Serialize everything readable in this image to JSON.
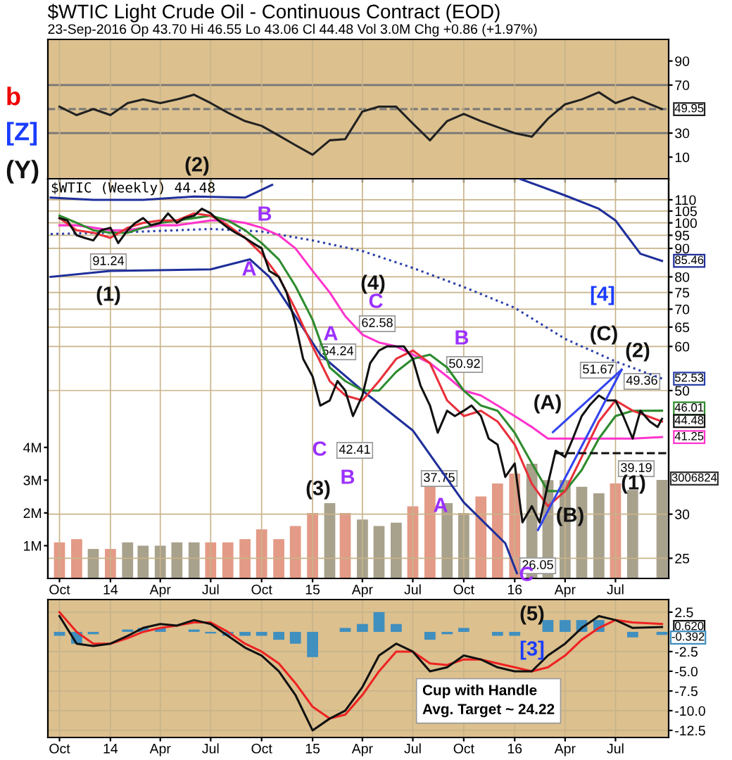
{
  "chart_data": [
    {
      "type": "line",
      "title": "$WTIC Light Crude Oil - Continuous Contract (EOD)",
      "subtitle": "23-Sep-2016 Op 43.70 Hi 46.55 Lo 43.06 Cl 44.48 Vol 3.0M Chg +0.86 (+1.97%)",
      "x": [
        "2013-10",
        "2013-11",
        "2013-12",
        "2014-01",
        "2014-02",
        "2014-03",
        "2014-04",
        "2014-05",
        "2014-06",
        "2014-07",
        "2014-08",
        "2014-09",
        "2014-10",
        "2014-11",
        "2014-12",
        "2015-01",
        "2015-02",
        "2015-03",
        "2015-04",
        "2015-05",
        "2015-06",
        "2015-07",
        "2015-08",
        "2015-09",
        "2015-10",
        "2015-11",
        "2015-12",
        "2016-01",
        "2016-02",
        "2016-03",
        "2016-04",
        "2016-05",
        "2016-06",
        "2016-07",
        "2016-08",
        "2016-09-23"
      ],
      "series": [
        {
          "color": "#222222",
          "values": [
            52,
            45,
            50,
            45,
            55,
            58,
            55,
            58,
            62,
            55,
            47,
            40,
            36,
            28,
            20,
            12,
            24,
            25,
            48,
            52,
            52,
            38,
            24,
            40,
            46,
            40,
            35,
            30,
            27,
            42,
            54,
            58,
            64,
            55,
            60,
            49.95
          ],
          "value_labels": [
            null,
            null,
            null,
            null,
            null,
            null,
            null,
            null,
            null,
            null,
            null,
            null,
            null,
            null,
            null,
            null,
            null,
            null,
            null,
            null,
            null,
            null,
            null,
            null,
            null,
            null,
            null,
            null,
            null,
            null,
            null,
            null,
            null,
            null,
            null,
            "49.95"
          ]
        }
      ],
      "xlim": [
        "2013-09-10",
        "2016-10-05"
      ],
      "xticks": [
        {
          "value": "2013-10-01",
          "label": null
        },
        {
          "value": "2014-01-01",
          "label": null
        },
        {
          "value": "2014-04-01",
          "label": null
        },
        {
          "value": "2014-07-01",
          "label": null
        },
        {
          "value": "2014-10-01",
          "label": null
        },
        {
          "value": "2015-01-01",
          "label": null
        },
        {
          "value": "2015-04-01",
          "label": null
        },
        {
          "value": "2015-07-01",
          "label": null
        },
        {
          "value": "2015-10-01",
          "label": null
        },
        {
          "value": "2016-01-01",
          "label": null
        },
        {
          "value": "2016-04-01",
          "label": null
        },
        {
          "value": "2016-07-01",
          "label": null
        }
      ],
      "ylim": [
        -8,
        108
      ],
      "yticks": [
        10,
        30,
        70,
        90
      ],
      "ref_lines": [
        {
          "axis": "y",
          "value": 30,
          "color": "#777777",
          "line_style": "solid"
        },
        {
          "axis": "y",
          "value": 50,
          "color": "#777777",
          "line_style": "dashed"
        },
        {
          "axis": "y",
          "value": 70,
          "color": "#777777",
          "line_style": "solid"
        }
      ],
      "annotations": [
        "b",
        "[Z]",
        "(Y)"
      ],
      "grid": "x",
      "tick_labels": "y"
    },
    {
      "type": "line",
      "log": true,
      "x": [
        "2013-10",
        "2013-11",
        "2013-12",
        "2014-01",
        "2014-02",
        "2014-03",
        "2014-04",
        "2014-05",
        "2014-06",
        "2014-07",
        "2014-08",
        "2014-09",
        "2014-10",
        "2014-11",
        "2014-12",
        "2015-01",
        "2015-02",
        "2015-03",
        "2015-04",
        "2015-05",
        "2015-06",
        "2015-07",
        "2015-08",
        "2015-09",
        "2015-10",
        "2015-11",
        "2015-12",
        "2016-01",
        "2016-02",
        "2016-03",
        "2016-04",
        "2016-05",
        "2016-06",
        "2016-07",
        "2016-08",
        "2016-09-23"
      ],
      "series": [
        {
          "type": "bar",
          "axis": "y2",
          "values": [
            1100000,
            1200000,
            900000,
            900000,
            1100000,
            1000000,
            1000000,
            1100000,
            1100000,
            1100000,
            1100000,
            1200000,
            1500000,
            1200000,
            1600000,
            2000000,
            2300000,
            2000000,
            1800000,
            1600000,
            1700000,
            2200000,
            2800000,
            2300000,
            2000000,
            2500000,
            2900000,
            3200000,
            3500000,
            3000000,
            3000000,
            2800000,
            2600000,
            2900000,
            2700000,
            3006824
          ],
          "colors": [
            "#e39a86",
            "#e39a86",
            "#a8a18c",
            "#e39a86",
            "#a8a18c",
            "#a8a18c",
            "#a8a18c",
            "#a8a18c",
            "#a8a18c",
            "#e39a86",
            "#e39a86",
            "#e39a86",
            "#e39a86",
            "#e39a86",
            "#e39a86",
            "#e39a86",
            "#a8a18c",
            "#e39a86",
            "#a8a18c",
            "#a8a18c",
            "#a8a18c",
            "#e39a86",
            "#e39a86",
            "#a8a18c",
            "#a8a18c",
            "#e39a86",
            "#e39a86",
            "#e39a86",
            "#a8a18c",
            "#a8a18c",
            "#a8a18c",
            "#a8a18c",
            "#a8a18c",
            "#e39a86",
            "#a8a18c",
            "#a8a18c"
          ]
        },
        {
          "color": "#1f2f9a",
          "x": [
            "2013-09-15",
            "2013-12-01",
            "2014-03-01",
            "2014-06-01",
            "2014-09-01",
            "2014-10-20",
            "2015-06-01",
            "2016-01-10",
            "2016-04-01",
            "2016-06-01",
            "2016-07-01",
            "2016-08-15",
            "2016-09-23"
          ],
          "values": [
            111,
            110,
            110,
            111.5,
            111,
            117,
            null,
            120,
            112,
            106,
            101,
            88,
            85.46
          ],
          "value_labels": [
            null,
            null,
            null,
            null,
            null,
            null,
            null,
            null,
            null,
            null,
            null,
            null,
            "85.46"
          ]
        },
        {
          "color": "#1f2f9a",
          "x": [
            "2013-09-15",
            "2014-01-01",
            "2014-07-01",
            "2014-09-10",
            "2014-10-15",
            "2014-12-01",
            "2015-01-15",
            "2015-04-01",
            "2015-07-01",
            "2015-10-01",
            "2015-12-15",
            "2016-01-05"
          ],
          "values": [
            80,
            82,
            82.5,
            86,
            80,
            68,
            58,
            50,
            42.4,
            31.5,
            26.6,
            23.5
          ]
        },
        {
          "color": "#2a3fa8",
          "line_style": "dotted",
          "x": [
            "2013-09-15",
            "2014-01-01",
            "2014-07-01",
            "2014-10-01",
            "2015-01-01",
            "2015-04-01",
            "2015-07-01",
            "2015-10-01",
            "2016-01-01",
            "2016-04-01",
            "2016-07-01",
            "2016-09-23"
          ],
          "values": [
            95.5,
            96,
            97.5,
            96.5,
            93,
            89,
            83,
            76.7,
            70.4,
            61.9,
            56.4,
            52.53
          ],
          "value_labels": [
            null,
            null,
            null,
            null,
            null,
            null,
            null,
            null,
            null,
            null,
            null,
            "52.53"
          ]
        },
        {
          "color": "#ff33cc",
          "values": [
            99,
            99,
            98,
            97,
            97,
            98,
            99,
            99,
            100,
            101,
            101,
            100,
            98,
            95,
            90,
            82,
            75,
            68,
            63,
            61,
            60,
            58,
            56,
            53,
            50,
            49,
            47,
            45,
            43,
            41,
            41,
            41,
            41,
            41,
            41,
            41.25
          ],
          "value_labels": [
            null,
            null,
            null,
            null,
            null,
            null,
            null,
            null,
            null,
            null,
            null,
            null,
            null,
            null,
            null,
            null,
            null,
            null,
            null,
            null,
            null,
            null,
            null,
            null,
            null,
            null,
            null,
            null,
            null,
            null,
            null,
            null,
            null,
            null,
            null,
            "41.25"
          ]
        },
        {
          "color": "#2e8b2e",
          "values": [
            103,
            100,
            97,
            96,
            96,
            98,
            100,
            101,
            102,
            103,
            101,
            97,
            92,
            86,
            77,
            67,
            55,
            52,
            50,
            50,
            54,
            57,
            58,
            55,
            50,
            47,
            46,
            42,
            37,
            33,
            33,
            36,
            41,
            45,
            46,
            46.01
          ],
          "value_labels": [
            null,
            null,
            null,
            null,
            null,
            null,
            null,
            null,
            null,
            null,
            null,
            null,
            null,
            null,
            null,
            null,
            null,
            null,
            null,
            null,
            null,
            null,
            null,
            null,
            null,
            null,
            null,
            null,
            null,
            null,
            null,
            null,
            null,
            null,
            null,
            "46.01"
          ]
        },
        {
          "color": "#e8303a",
          "values": [
            102,
            97,
            96,
            94,
            98,
            100,
            101,
            101,
            104,
            103,
            99,
            94,
            88,
            80,
            70,
            60,
            52,
            49,
            48,
            52,
            57,
            59,
            56,
            48,
            45,
            46,
            44,
            40,
            34,
            31,
            33,
            38,
            44,
            48,
            46,
            44
          ]
        },
        {
          "color": "#111111",
          "x": [
            "2013-10-01",
            "2013-10-15",
            "2013-11-01",
            "2013-11-15",
            "2013-12-01",
            "2013-12-15",
            "2014-01-01",
            "2014-01-15",
            "2014-02-01",
            "2014-02-15",
            "2014-03-01",
            "2014-03-15",
            "2014-04-01",
            "2014-04-15",
            "2014-05-01",
            "2014-05-15",
            "2014-06-01",
            "2014-06-15",
            "2014-07-01",
            "2014-07-15",
            "2014-08-01",
            "2014-08-15",
            "2014-09-01",
            "2014-09-15",
            "2014-10-01",
            "2014-10-15",
            "2014-11-01",
            "2014-11-15",
            "2014-12-01",
            "2014-12-15",
            "2015-01-01",
            "2015-01-15",
            "2015-02-01",
            "2015-02-15",
            "2015-03-01",
            "2015-03-15",
            "2015-04-01",
            "2015-04-15",
            "2015-05-01",
            "2015-05-15",
            "2015-06-01",
            "2015-06-15",
            "2015-07-01",
            "2015-07-15",
            "2015-08-01",
            "2015-08-15",
            "2015-09-01",
            "2015-09-15",
            "2015-10-01",
            "2015-10-15",
            "2015-11-01",
            "2015-11-15",
            "2015-12-01",
            "2015-12-15",
            "2016-01-01",
            "2016-01-15",
            "2016-02-01",
            "2016-02-15",
            "2016-03-01",
            "2016-03-15",
            "2016-04-01",
            "2016-04-15",
            "2016-05-01",
            "2016-05-15",
            "2016-06-01",
            "2016-06-15",
            "2016-07-01",
            "2016-07-15",
            "2016-08-01",
            "2016-08-15",
            "2016-09-01",
            "2016-09-15",
            "2016-09-23"
          ],
          "values": [
            102,
            101,
            95,
            94,
            93,
            97,
            98,
            92,
            97,
            100,
            102,
            99,
            100,
            104,
            100,
            102,
            103,
            106,
            104,
            101,
            98,
            96,
            94,
            92,
            90,
            82,
            80,
            75,
            66,
            57,
            53,
            47,
            48,
            52,
            50,
            45,
            49,
            56,
            59,
            60,
            60,
            60,
            57,
            51,
            47,
            42,
            46,
            45,
            46,
            47,
            45,
            41,
            40,
            35,
            37,
            29,
            31,
            29,
            34,
            39,
            38,
            41,
            45,
            47,
            49,
            48,
            48,
            45,
            41,
            46,
            44,
            43,
            44.48
          ],
          "value_labels": [
            null,
            null,
            null,
            null,
            null,
            null,
            null,
            null,
            null,
            null,
            null,
            null,
            null,
            null,
            null,
            null,
            null,
            null,
            null,
            null,
            null,
            null,
            null,
            null,
            null,
            null,
            null,
            null,
            null,
            null,
            null,
            null,
            null,
            null,
            null,
            null,
            null,
            null,
            null,
            null,
            null,
            null,
            null,
            null,
            null,
            null,
            null,
            null,
            null,
            null,
            null,
            null,
            null,
            null,
            null,
            null,
            null,
            null,
            null,
            null,
            null,
            null,
            null,
            null,
            null,
            null,
            null,
            null,
            null,
            null,
            null,
            null,
            "44.48"
          ]
        },
        {
          "color": "#3344ee",
          "x": [
            "2016-02-12",
            "2016-07-12"
          ],
          "values": [
            28.1,
            54.5
          ]
        },
        {
          "color": "#3344ee",
          "x": [
            "2016-03-10",
            "2016-07-12"
          ],
          "values": [
            42.1,
            54.5
          ]
        },
        {
          "color": "#111111",
          "line_style": "dashed",
          "x": [
            "2016-03-15",
            "2016-10-01"
          ],
          "values": [
            38.6,
            38.6
          ]
        }
      ],
      "xlim": [
        "2013-09-10",
        "2016-10-05"
      ],
      "xticks": [
        {
          "value": "2013-10-01",
          "label": "Oct"
        },
        {
          "value": "2014-01-01",
          "label": "14"
        },
        {
          "value": "2014-04-01",
          "label": "Apr"
        },
        {
          "value": "2014-07-01",
          "label": "Jul"
        },
        {
          "value": "2014-10-01",
          "label": "Oct"
        },
        {
          "value": "2015-01-01",
          "label": "15"
        },
        {
          "value": "2015-04-01",
          "label": "Apr"
        },
        {
          "value": "2015-07-01",
          "label": "Jul"
        },
        {
          "value": "2015-10-01",
          "label": "Oct"
        },
        {
          "value": "2016-01-01",
          "label": "16"
        },
        {
          "value": "2016-04-01",
          "label": "Apr"
        },
        {
          "value": "2016-07-01",
          "label": "Jul"
        }
      ],
      "ylim": [
        23,
        120
      ],
      "yticks": [
        25,
        30,
        50,
        60,
        65,
        70,
        75,
        80,
        90,
        95,
        100,
        105,
        110
      ],
      "y2lim": [
        0,
        12200000
      ],
      "y2ticks": [
        {
          "value": 1000000,
          "label": "1M"
        },
        {
          "value": 2000000,
          "label": "2M"
        },
        {
          "value": 3000000,
          "label": "3M"
        },
        {
          "value": 4000000,
          "label": "4M"
        }
      ],
      "annotations": [
        "$WTIC (Weekly) 44.48",
        "(2)",
        "B",
        "91.24",
        "(1)",
        "A",
        "A",
        "54.24",
        "C",
        "42.41",
        "B",
        "(3)",
        "(4)",
        "C",
        "62.58",
        "B",
        "50.92",
        "37.75",
        "A",
        "(A)",
        "(B)",
        "26.05",
        "C",
        "[4]",
        "(C)",
        "(2)",
        "51.67",
        "49.36",
        "39.19",
        "(1)",
        "3006824"
      ],
      "grid": true
    },
    {
      "type": "line",
      "x": [
        "2013-10",
        "2013-11",
        "2013-12",
        "2014-01",
        "2014-02",
        "2014-03",
        "2014-04",
        "2014-05",
        "2014-06",
        "2014-07",
        "2014-08",
        "2014-09",
        "2014-10",
        "2014-11",
        "2014-12",
        "2015-01",
        "2015-02",
        "2015-03",
        "2015-04",
        "2015-05",
        "2015-06",
        "2015-07",
        "2015-08",
        "2015-09",
        "2015-10",
        "2015-11",
        "2015-12",
        "2016-01",
        "2016-02",
        "2016-03",
        "2016-04",
        "2016-05",
        "2016-06",
        "2016-07",
        "2016-08",
        "2016-09-23"
      ],
      "series": [
        {
          "type": "bar",
          "color": "#3f8fbf",
          "values": [
            -0.5,
            -1.5,
            -0.3,
            0.0,
            0.3,
            0.5,
            0.5,
            0.0,
            0.3,
            -0.2,
            -0.5,
            -0.5,
            -0.5,
            -1.0,
            -1.5,
            -3.2,
            0.0,
            0.5,
            1.0,
            2.5,
            1.0,
            0.0,
            -1.0,
            -0.3,
            0.5,
            0.0,
            -0.5,
            -0.5,
            0.0,
            1.5,
            1.5,
            1.5,
            1.5,
            0.0,
            -0.7,
            -0.392
          ]
        },
        {
          "color": "#ee2222",
          "values": [
            2.5,
            0.0,
            -1.5,
            -1.5,
            -0.8,
            0.0,
            0.5,
            0.8,
            1.2,
            1.2,
            0.0,
            -1.5,
            -2.5,
            -4.0,
            -6.5,
            -9.5,
            -11.0,
            -10.5,
            -8.0,
            -5.0,
            -2.5,
            -2.5,
            -4.0,
            -4.2,
            -3.5,
            -3.5,
            -4.0,
            -4.5,
            -5.0,
            -4.5,
            -3.0,
            -1.0,
            0.5,
            1.5,
            1.2,
            1.0
          ]
        },
        {
          "color": "#111111",
          "values": [
            2.0,
            -1.5,
            -1.8,
            -1.5,
            -0.5,
            0.5,
            1.0,
            0.8,
            1.5,
            1.0,
            -0.5,
            -2.0,
            -3.0,
            -5.0,
            -8.0,
            -12.5,
            -11.0,
            -10.0,
            -7.0,
            -3.0,
            -1.5,
            -2.5,
            -5.0,
            -4.5,
            -3.0,
            -3.5,
            -4.5,
            -5.0,
            -5.0,
            -3.0,
            -1.5,
            0.5,
            2.0,
            1.5,
            0.5,
            0.62
          ],
          "value_labels": [
            null,
            null,
            null,
            null,
            null,
            null,
            null,
            null,
            null,
            null,
            null,
            null,
            null,
            null,
            null,
            null,
            null,
            null,
            null,
            null,
            null,
            null,
            null,
            null,
            null,
            null,
            null,
            null,
            null,
            null,
            null,
            null,
            null,
            null,
            null,
            "0.620"
          ]
        }
      ],
      "xlim": [
        "2013-09-10",
        "2016-10-05"
      ],
      "xticks": [
        {
          "value": "2013-10-01",
          "label": "Oct"
        },
        {
          "value": "2014-01-01",
          "label": "14"
        },
        {
          "value": "2014-04-01",
          "label": "Apr"
        },
        {
          "value": "2014-07-01",
          "label": "Jul"
        },
        {
          "value": "2014-10-01",
          "label": "Oct"
        },
        {
          "value": "2015-01-01",
          "label": "15"
        },
        {
          "value": "2015-04-01",
          "label": "Apr"
        },
        {
          "value": "2015-07-01",
          "label": "Jul"
        },
        {
          "value": "2015-10-01",
          "label": "Oct"
        },
        {
          "value": "2016-01-01",
          "label": "16"
        },
        {
          "value": "2016-04-01",
          "label": "Apr"
        },
        {
          "value": "2016-07-01",
          "label": "Jul"
        }
      ],
      "ylim": [
        -13.4,
        4.1
      ],
      "yticks": [
        2.5,
        -2.5,
        {
          "value": -5,
          "label": "-5.0"
        },
        -7.5,
        {
          "value": -10,
          "label": "-10.0"
        },
        -12.5
      ],
      "annotations": [
        "(5)",
        "[3]",
        "Cup with Handle\nAvg. Target ~ 24.22",
        "-0.392"
      ],
      "grid": true
    }
  ]
}
